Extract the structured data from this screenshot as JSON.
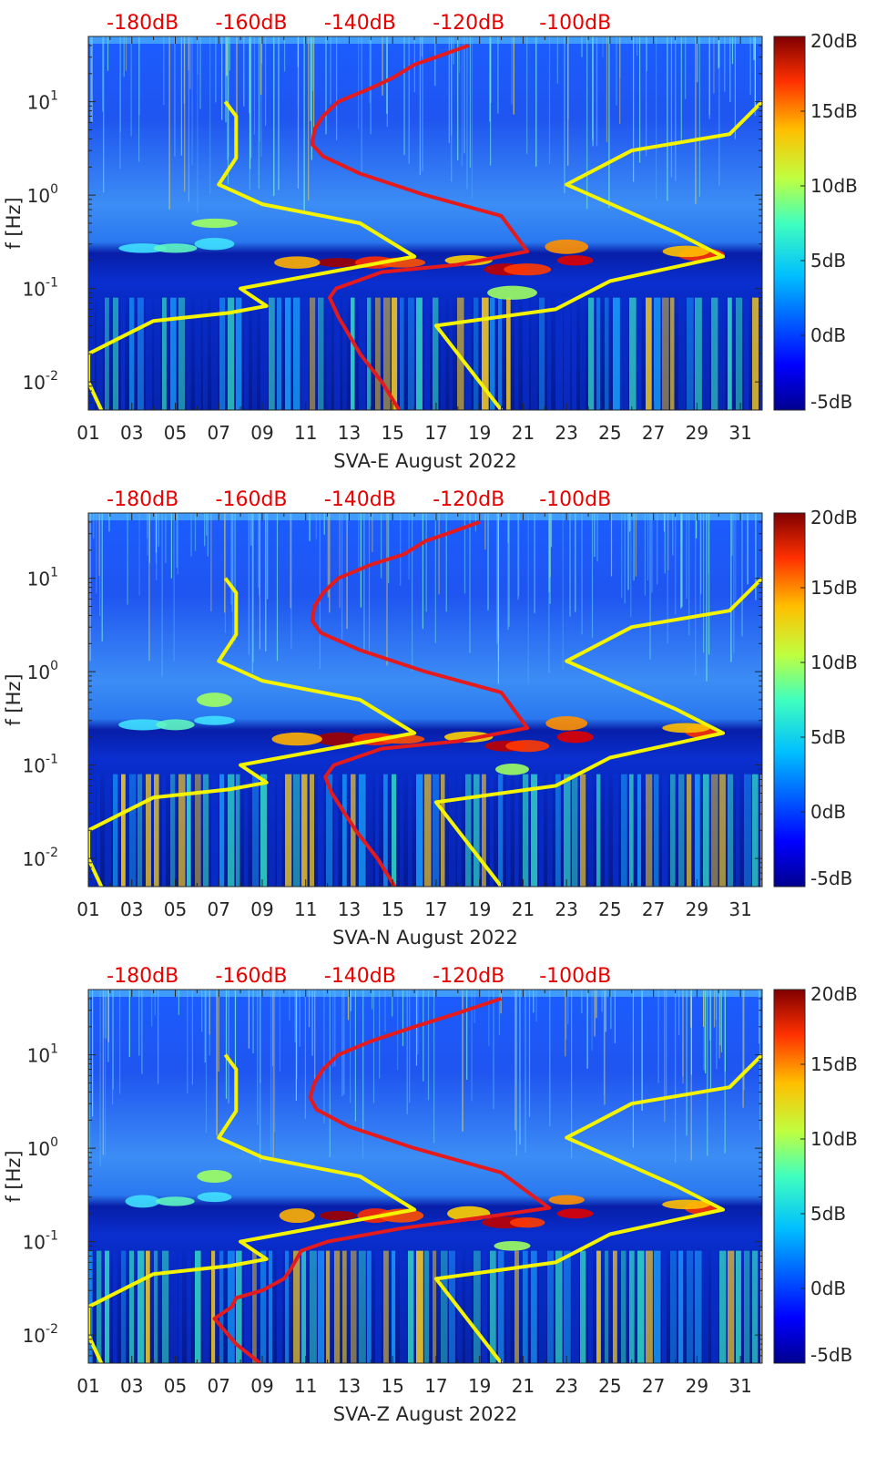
{
  "chart_data": [
    {
      "type": "heatmap",
      "xlabel": "SVA-E August 2022",
      "ylabel": "f [Hz]",
      "x_ticks": [
        "01",
        "03",
        "05",
        "07",
        "09",
        "11",
        "13",
        "15",
        "17",
        "19",
        "21",
        "23",
        "25",
        "27",
        "29",
        "31"
      ],
      "y_scale": "log",
      "ylim": [
        0.005,
        50
      ],
      "y_ticks": [
        "10^{-2}",
        "10^{-1}",
        "10^{0}",
        "10^{1}"
      ],
      "top_labels": [
        "-180dB",
        "-160dB",
        "-140dB",
        "-120dB",
        "-100dB"
      ],
      "colorbar_labels": [
        "20dB",
        "15dB",
        "10dB",
        "5dB",
        "0dB",
        "-5dB"
      ],
      "clim": [
        -5,
        20
      ],
      "series": [
        {
          "color": "#e41a1c",
          "x": [
            15.3,
            14.5,
            13.5,
            12.5,
            12.1,
            12.4,
            14.5,
            18.0,
            21.2,
            20.0,
            16.5,
            13.5,
            11.8,
            11.3,
            11.4,
            11.8,
            12.5,
            14.0,
            15.0,
            16.0,
            17.0,
            18.5
          ],
          "y": [
            0.005,
            0.01,
            0.02,
            0.05,
            0.08,
            0.1,
            0.15,
            0.18,
            0.25,
            0.6,
            1.0,
            1.7,
            2.6,
            3.5,
            5.0,
            7.0,
            10.0,
            14.0,
            18.0,
            25.0,
            30.0,
            40.0
          ]
        },
        {
          "color": "#f4f400",
          "x": [
            1.6,
            1.0,
            1.0,
            2.5,
            4.0,
            7.5,
            9.2,
            8.0,
            16.0,
            13.5,
            9.0,
            7.0,
            7.8,
            7.8,
            7.3
          ],
          "y": [
            0.005,
            0.01,
            0.02,
            0.03,
            0.045,
            0.055,
            0.065,
            0.1,
            0.22,
            0.5,
            0.8,
            1.3,
            2.5,
            7.0,
            10.0
          ]
        },
        {
          "color": "#f4f400",
          "x": [
            20.0,
            19.0,
            17.0,
            22.5,
            25.0,
            30.2,
            28.0,
            23.0,
            26.0,
            30.5,
            32.0
          ],
          "y": [
            0.005,
            0.01,
            0.04,
            0.06,
            0.12,
            0.22,
            0.4,
            1.3,
            3.0,
            4.5,
            10.0
          ]
        }
      ]
    },
    {
      "type": "heatmap",
      "xlabel": "SVA-N August 2022",
      "ylabel": "f [Hz]",
      "x_ticks": [
        "01",
        "03",
        "05",
        "07",
        "09",
        "11",
        "13",
        "15",
        "17",
        "19",
        "21",
        "23",
        "25",
        "27",
        "29",
        "31"
      ],
      "y_scale": "log",
      "ylim": [
        0.005,
        50
      ],
      "y_ticks": [
        "10^{-2}",
        "10^{-1}",
        "10^{0}",
        "10^{1}"
      ],
      "top_labels": [
        "-180dB",
        "-160dB",
        "-140dB",
        "-120dB",
        "-100dB"
      ],
      "colorbar_labels": [
        "20dB",
        "15dB",
        "10dB",
        "5dB",
        "0dB",
        "-5dB"
      ],
      "clim": [
        -5,
        20
      ],
      "series": [
        {
          "color": "#e41a1c",
          "x": [
            15.1,
            14.3,
            13.3,
            12.2,
            11.9,
            12.3,
            14.5,
            18.0,
            21.2,
            20.0,
            16.5,
            13.5,
            11.7,
            11.3,
            11.4,
            11.8,
            12.5,
            14.0,
            15.5,
            16.5,
            17.5,
            19.0
          ],
          "y": [
            0.005,
            0.01,
            0.02,
            0.05,
            0.075,
            0.1,
            0.15,
            0.18,
            0.25,
            0.6,
            1.0,
            1.7,
            2.6,
            3.5,
            5.0,
            7.0,
            10.0,
            14.0,
            18.0,
            25.0,
            30.0,
            40.0
          ]
        },
        {
          "color": "#f4f400",
          "x": [
            1.6,
            1.0,
            1.0,
            2.5,
            4.0,
            7.5,
            9.2,
            8.0,
            16.0,
            13.5,
            9.0,
            7.0,
            7.8,
            7.8,
            7.3
          ],
          "y": [
            0.005,
            0.01,
            0.02,
            0.03,
            0.045,
            0.055,
            0.065,
            0.1,
            0.22,
            0.5,
            0.8,
            1.3,
            2.5,
            7.0,
            10.0
          ]
        },
        {
          "color": "#f4f400",
          "x": [
            20.0,
            19.0,
            17.0,
            22.5,
            25.0,
            30.2,
            28.0,
            23.0,
            26.0,
            30.5,
            32.0
          ],
          "y": [
            0.005,
            0.01,
            0.04,
            0.06,
            0.12,
            0.22,
            0.4,
            1.3,
            3.0,
            4.5,
            10.0
          ]
        }
      ]
    },
    {
      "type": "heatmap",
      "xlabel": "SVA-Z August 2022",
      "ylabel": "f [Hz]",
      "x_ticks": [
        "01",
        "03",
        "05",
        "07",
        "09",
        "11",
        "13",
        "15",
        "17",
        "19",
        "21",
        "23",
        "25",
        "27",
        "29",
        "31"
      ],
      "y_scale": "log",
      "ylim": [
        0.005,
        50
      ],
      "y_ticks": [
        "10^{-2}",
        "10^{-1}",
        "10^{0}",
        "10^{1}"
      ],
      "top_labels": [
        "-180dB",
        "-160dB",
        "-140dB",
        "-120dB",
        "-100dB"
      ],
      "colorbar_labels": [
        "20dB",
        "15dB",
        "10dB",
        "5dB",
        "0dB",
        "-5dB"
      ],
      "clim": [
        -5,
        20
      ],
      "series": [
        {
          "color": "#e41a1c",
          "x": [
            8.9,
            7.8,
            6.8,
            7.6,
            7.8,
            9.0,
            10.0,
            10.3,
            10.8,
            12.0,
            15.5,
            19.0,
            22.2,
            20.0,
            16.0,
            13.0,
            11.5,
            11.2,
            11.4,
            11.8,
            12.5,
            14.0,
            16.0,
            18.0,
            20.0
          ],
          "y": [
            0.005,
            0.008,
            0.015,
            0.02,
            0.025,
            0.03,
            0.04,
            0.05,
            0.08,
            0.1,
            0.14,
            0.18,
            0.23,
            0.55,
            1.0,
            1.7,
            2.6,
            3.5,
            5.0,
            7.0,
            10.0,
            14.0,
            20.0,
            28.0,
            40.0
          ]
        },
        {
          "color": "#f4f400",
          "x": [
            1.6,
            1.0,
            1.0,
            2.5,
            4.0,
            7.5,
            9.2,
            8.0,
            16.0,
            13.5,
            9.0,
            7.0,
            7.8,
            7.8,
            7.3
          ],
          "y": [
            0.005,
            0.01,
            0.02,
            0.03,
            0.045,
            0.055,
            0.065,
            0.1,
            0.22,
            0.5,
            0.8,
            1.3,
            2.5,
            7.0,
            10.0
          ]
        },
        {
          "color": "#f4f400",
          "x": [
            20.0,
            19.0,
            17.0,
            22.5,
            25.0,
            30.2,
            28.0,
            23.0,
            26.0,
            30.5,
            32.0
          ],
          "y": [
            0.005,
            0.01,
            0.04,
            0.06,
            0.12,
            0.22,
            0.4,
            1.3,
            3.0,
            4.5,
            10.0
          ]
        }
      ]
    }
  ]
}
